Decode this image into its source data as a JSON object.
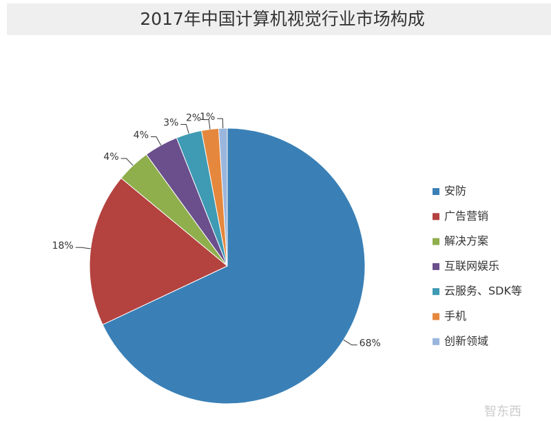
{
  "chart_data": {
    "type": "pie",
    "title": "2017年中国计算机视觉行业市场构成",
    "categories": [
      "安防",
      "广告营销",
      "解决方案",
      "互联网娱乐",
      "云服务、SDK等",
      "手机",
      "创新领域"
    ],
    "values": [
      68,
      18,
      4,
      4,
      3,
      2,
      1
    ],
    "value_labels": [
      "68%",
      "18%",
      "4%",
      "4%",
      "3%",
      "2%",
      "1%"
    ],
    "colors": [
      "#3a80b6",
      "#b4423f",
      "#8fae4c",
      "#6a4f8c",
      "#3f9ab3",
      "#e5873c",
      "#9ab6dd"
    ],
    "legend": "right"
  },
  "watermark": "智东西"
}
